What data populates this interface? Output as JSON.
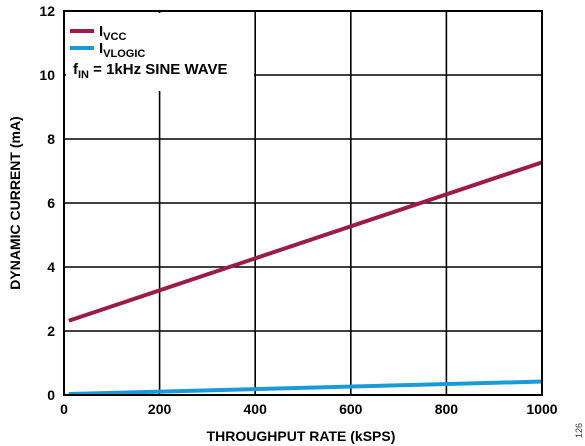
{
  "chart_data": {
    "type": "line",
    "xlabel": "THROUGHPUT RATE (kSPS)",
    "ylabel": "DYNAMIC CURRENT (mA)",
    "xlim": [
      0,
      1000
    ],
    "ylim": [
      0,
      12
    ],
    "x_ticks": [
      0,
      200,
      400,
      600,
      800,
      1000
    ],
    "y_ticks": [
      0,
      2,
      4,
      6,
      8,
      10,
      12
    ],
    "x_tick_labels": [
      "0",
      "200",
      "400",
      "600",
      "800",
      "1000"
    ],
    "y_tick_labels": [
      "0",
      "2",
      "4",
      "6",
      "8",
      "10",
      "12"
    ],
    "grid": true,
    "legend_position": "top-left",
    "series": [
      {
        "name_main": "I",
        "name_sub": "VCC",
        "color": "#9b1b4a",
        "x": [
          10,
          1000
        ],
        "y": [
          2.32,
          7.27
        ]
      },
      {
        "name_main": "I",
        "name_sub": "VLOGIC",
        "color": "#1a9ad6",
        "x": [
          10,
          1000
        ],
        "y": [
          0.03,
          0.42
        ]
      }
    ],
    "annotation": {
      "main": "f",
      "sub": "IN",
      "rest": " = 1kHz SINE WAVE"
    },
    "reference_id": "126"
  }
}
